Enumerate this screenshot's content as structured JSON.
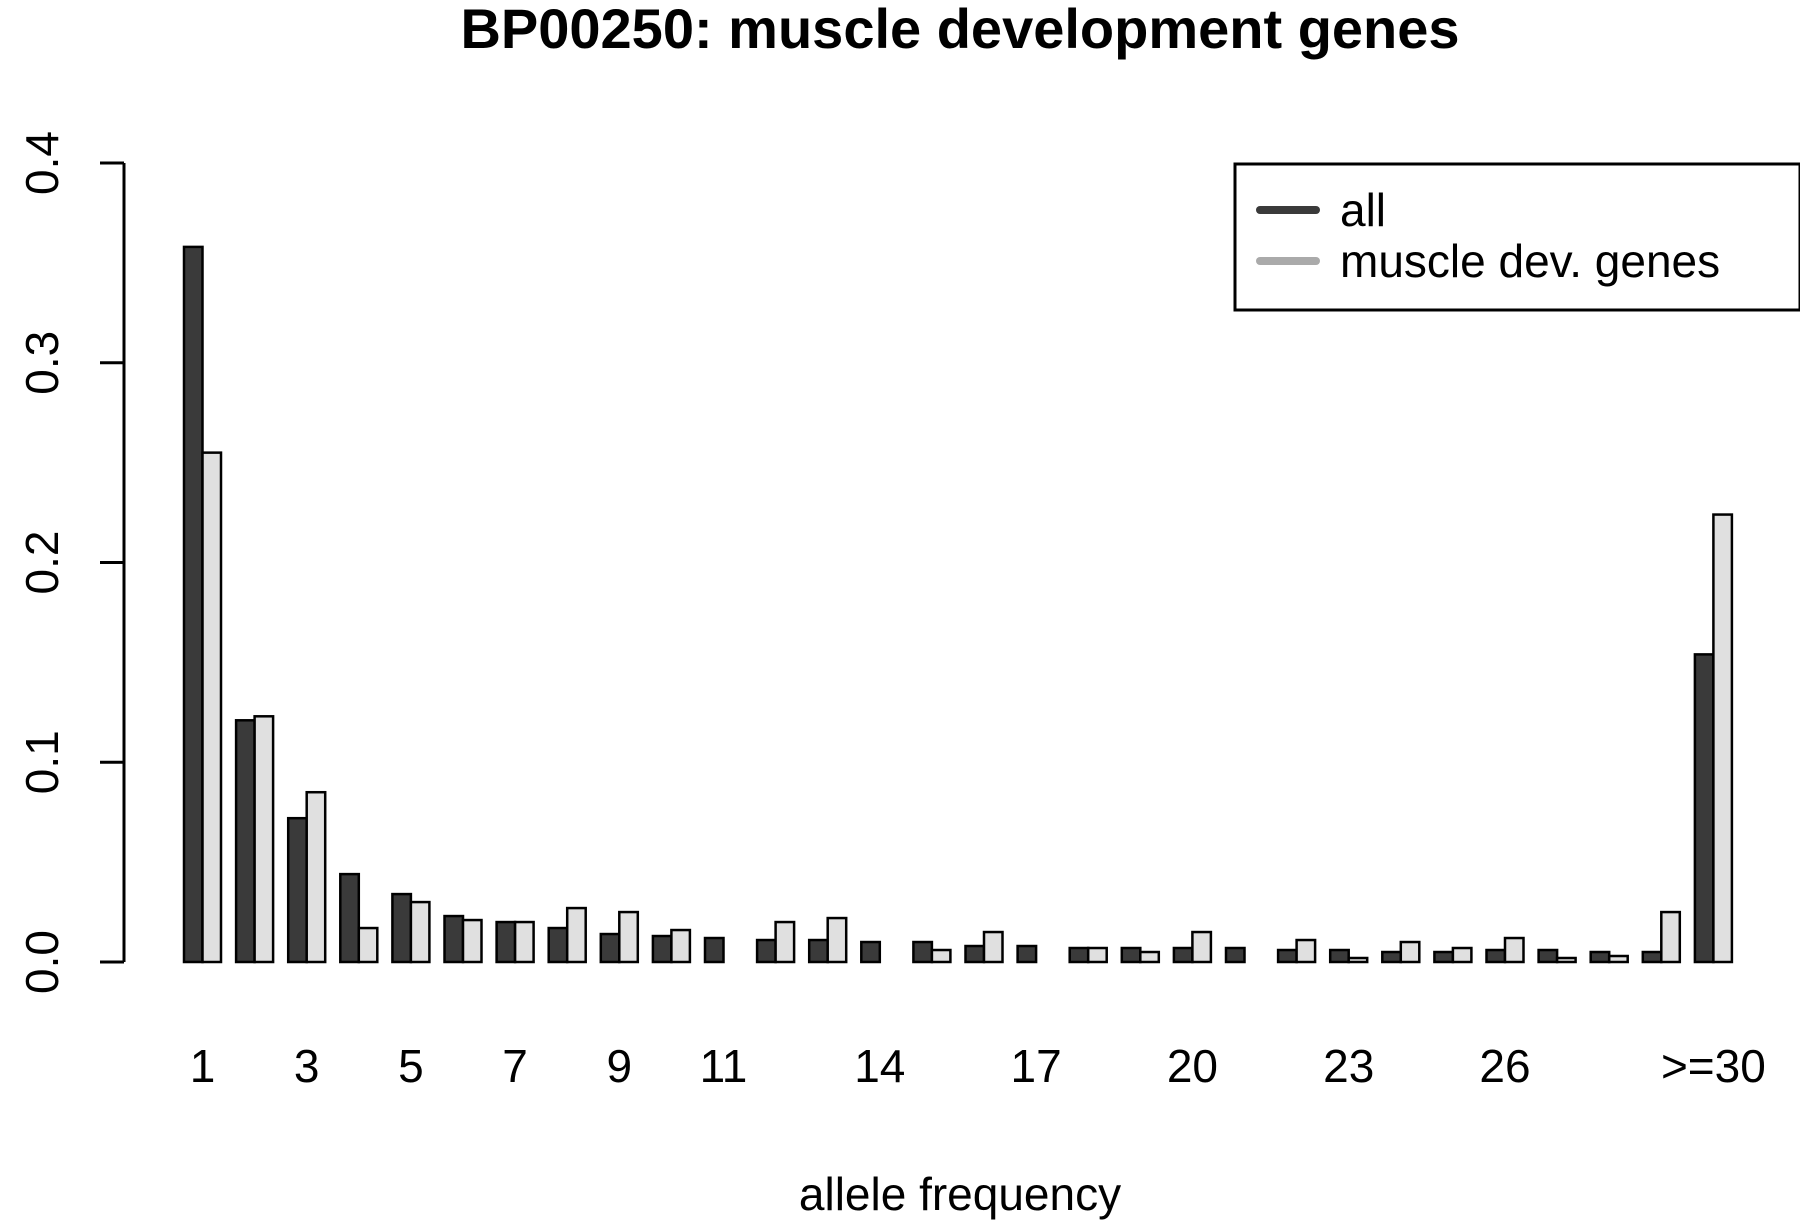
{
  "chart_data": {
    "type": "bar",
    "title": "BP00250: muscle development genes",
    "xlabel": "allele frequency",
    "ylabel": "",
    "ylim": [
      0,
      0.4
    ],
    "yticks": [
      "0.0",
      "0.1",
      "0.2",
      "0.3",
      "0.4"
    ],
    "categories": [
      "1",
      "2",
      "3",
      "4",
      "5",
      "6",
      "7",
      "8",
      "9",
      "10",
      "11",
      "12",
      "13",
      "14",
      "15",
      "16",
      "17",
      "18",
      "19",
      "20",
      "21",
      "22",
      "23",
      "24",
      "25",
      "26",
      "27",
      "28",
      "29",
      ">=30"
    ],
    "x_tick_labels": [
      "1",
      "3",
      "5",
      "7",
      "9",
      "11",
      "14",
      "17",
      "20",
      "23",
      "26",
      ">=30"
    ],
    "x_tick_indices": [
      0,
      2,
      4,
      6,
      8,
      10,
      13,
      16,
      19,
      22,
      25,
      29
    ],
    "series": [
      {
        "name": "all",
        "color": "#3a3a3a",
        "values": [
          0.358,
          0.121,
          0.072,
          0.044,
          0.034,
          0.023,
          0.02,
          0.017,
          0.014,
          0.013,
          0.012,
          0.011,
          0.011,
          0.01,
          0.01,
          0.008,
          0.008,
          0.007,
          0.007,
          0.007,
          0.007,
          0.006,
          0.006,
          0.005,
          0.005,
          0.006,
          0.006,
          0.005,
          0.005,
          0.154
        ]
      },
      {
        "name": "muscle dev. genes",
        "color": "#e0e0e0",
        "values": [
          0.255,
          0.123,
          0.085,
          0.017,
          0.03,
          0.021,
          0.02,
          0.027,
          0.025,
          0.016,
          0.0,
          0.02,
          0.022,
          0.0,
          0.006,
          0.015,
          0.0,
          0.007,
          0.005,
          0.015,
          0.0,
          0.011,
          0.002,
          0.01,
          0.007,
          0.012,
          0.002,
          0.003,
          0.025,
          0.224
        ]
      }
    ],
    "legend": {
      "placement": "top-right",
      "entries": [
        {
          "label": "all",
          "color": "#3a3a3a"
        },
        {
          "label": "muscle dev. genes",
          "color": "#aaaaaa"
        }
      ]
    },
    "grid": false
  }
}
